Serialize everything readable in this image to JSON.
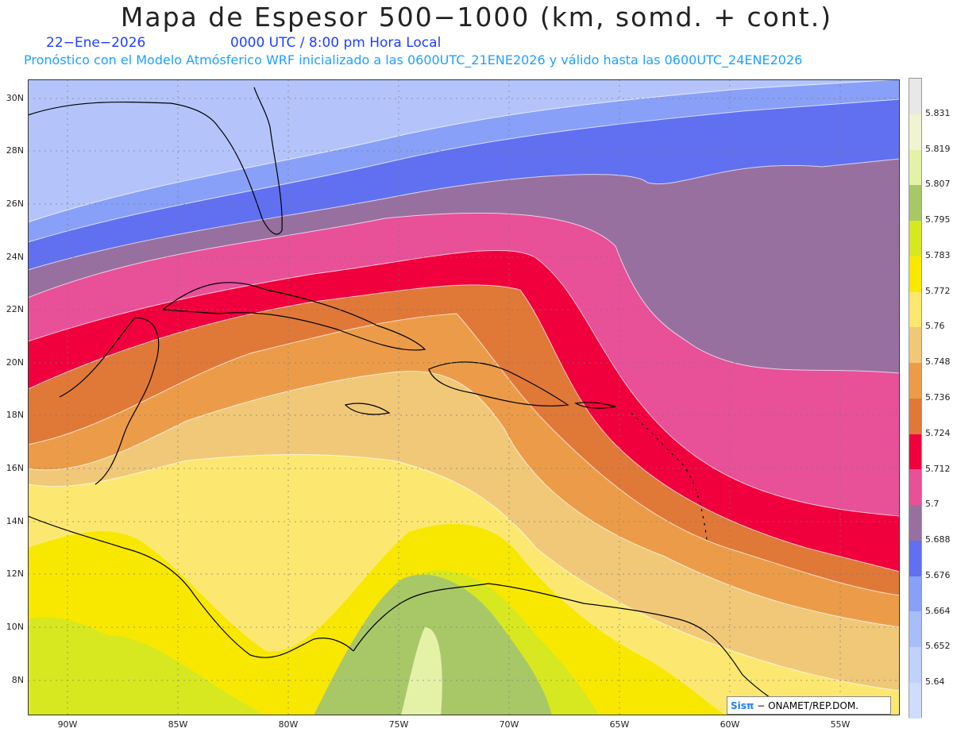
{
  "header": {
    "title": "Mapa de Espesor 500−1000 (km, somd. + cont.)",
    "date": "22−Ene−2026",
    "time": "0000 UTC / 8:00 pm Hora Local",
    "forecast": "Pronóstico con el Modelo Atmósferico WRF inicializado a las 0600UTC_21ENE2026 y válido hasta las  0600UTC_24ENE2026"
  },
  "axes": {
    "lat_labels": [
      "30N",
      "28N",
      "26N",
      "24N",
      "22N",
      "20N",
      "18N",
      "16N",
      "14N",
      "12N",
      "10N",
      "8N"
    ],
    "lon_labels": [
      "90W",
      "85W",
      "80W",
      "75W",
      "70W",
      "65W",
      "60W",
      "55W"
    ]
  },
  "legend": {
    "labels": [
      "5.831",
      "5.819",
      "5.807",
      "5.795",
      "5.783",
      "5.772",
      "5.76",
      "5.748",
      "5.736",
      "5.724",
      "5.712",
      "5.7",
      "5.688",
      "5.676",
      "5.664",
      "5.652",
      "5.64"
    ],
    "colors": [
      "#e8e8e8",
      "#f0f4d0",
      "#e4f2a8",
      "#a8c868",
      "#d8e820",
      "#f8e800",
      "#fce870",
      "#f0c878",
      "#ec9c48",
      "#e07838",
      "#f0003c",
      "#e85098",
      "#9870a0",
      "#6070f0",
      "#88a0f8",
      "#a8bef8",
      "#c0d0ff"
    ]
  },
  "credit": {
    "brand": "Sisπ",
    "text": "−  ONAMET/REP.DOM."
  }
}
